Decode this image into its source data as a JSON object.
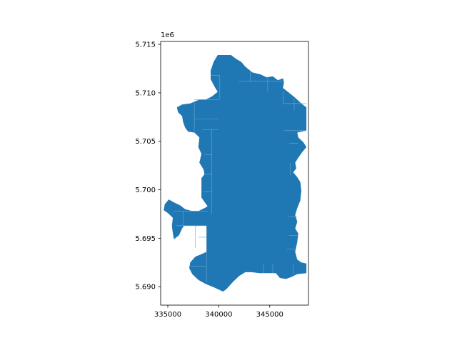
{
  "chart_data": {
    "type": "map",
    "geometry": "filled polygon mosaic (municipal boundary made of adjacent tiles)",
    "xlim": [
      334300,
      348800
    ],
    "ylim": [
      5688100,
      5715300
    ],
    "y_offset_label": "1e6",
    "x_ticks": [
      {
        "value": 335000,
        "label": "335000"
      },
      {
        "value": 340000,
        "label": "340000"
      },
      {
        "value": 345000,
        "label": "345000"
      }
    ],
    "y_ticks": [
      {
        "value": 5690000,
        "label": "5.690"
      },
      {
        "value": 5695000,
        "label": "5.695"
      },
      {
        "value": 5700000,
        "label": "5.700"
      },
      {
        "value": 5705000,
        "label": "5.705"
      },
      {
        "value": 5710000,
        "label": "5.710"
      },
      {
        "value": 5715000,
        "label": "5.715"
      }
    ],
    "grid": false,
    "legend": "none",
    "colors": {
      "fill": "#1f77b4",
      "tile_edge": "#6fa8d6",
      "axes": "#000000",
      "background": "#ffffff"
    },
    "outline": [
      [
        339900,
        5713900
      ],
      [
        341200,
        5713900
      ],
      [
        341700,
        5713500
      ],
      [
        342200,
        5713200
      ],
      [
        342600,
        5712700
      ],
      [
        343300,
        5712100
      ],
      [
        344100,
        5711900
      ],
      [
        344700,
        5711600
      ],
      [
        345300,
        5711700
      ],
      [
        345800,
        5711300
      ],
      [
        346300,
        5711500
      ],
      [
        346400,
        5711100
      ],
      [
        346300,
        5710500
      ],
      [
        346900,
        5710000
      ],
      [
        347500,
        5709500
      ],
      [
        348100,
        5708900
      ],
      [
        348600,
        5708500
      ],
      [
        348600,
        5706100
      ],
      [
        347700,
        5705900
      ],
      [
        347800,
        5705400
      ],
      [
        348300,
        5704900
      ],
      [
        348600,
        5704400
      ],
      [
        348200,
        5703900
      ],
      [
        347800,
        5703300
      ],
      [
        347500,
        5702800
      ],
      [
        347600,
        5702200
      ],
      [
        347300,
        5701800
      ],
      [
        347700,
        5701300
      ],
      [
        348000,
        5700800
      ],
      [
        348100,
        5699900
      ],
      [
        348000,
        5698900
      ],
      [
        347700,
        5698100
      ],
      [
        347500,
        5697400
      ],
      [
        347700,
        5696700
      ],
      [
        347500,
        5696000
      ],
      [
        347800,
        5695500
      ],
      [
        347700,
        5694600
      ],
      [
        347500,
        5693600
      ],
      [
        347700,
        5692800
      ],
      [
        348100,
        5692500
      ],
      [
        348600,
        5692400
      ],
      [
        348600,
        5691400
      ],
      [
        347700,
        5691300
      ],
      [
        347100,
        5691000
      ],
      [
        346600,
        5690800
      ],
      [
        346000,
        5690900
      ],
      [
        345600,
        5691400
      ],
      [
        345200,
        5691400
      ],
      [
        344600,
        5691400
      ],
      [
        344000,
        5691400
      ],
      [
        343200,
        5691500
      ],
      [
        342600,
        5691500
      ],
      [
        342000,
        5691100
      ],
      [
        341400,
        5690500
      ],
      [
        340700,
        5689700
      ],
      [
        340400,
        5689500
      ],
      [
        339600,
        5689900
      ],
      [
        338700,
        5690300
      ],
      [
        338000,
        5690700
      ],
      [
        337400,
        5691300
      ],
      [
        337100,
        5691900
      ],
      [
        337200,
        5692500
      ],
      [
        337700,
        5693100
      ],
      [
        338400,
        5693400
      ],
      [
        338800,
        5693600
      ],
      [
        338800,
        5696300
      ],
      [
        337300,
        5696300
      ],
      [
        336600,
        5696300
      ],
      [
        336400,
        5696000
      ],
      [
        336100,
        5695300
      ],
      [
        335600,
        5694900
      ],
      [
        335500,
        5695500
      ],
      [
        335400,
        5696300
      ],
      [
        335500,
        5697100
      ],
      [
        335000,
        5697600
      ],
      [
        334600,
        5697900
      ],
      [
        334700,
        5698500
      ],
      [
        335100,
        5699000
      ],
      [
        335600,
        5698700
      ],
      [
        336200,
        5698400
      ],
      [
        336700,
        5698000
      ],
      [
        337400,
        5697800
      ],
      [
        338000,
        5697800
      ],
      [
        338600,
        5698100
      ],
      [
        338900,
        5698300
      ],
      [
        338700,
        5698600
      ],
      [
        338300,
        5699200
      ],
      [
        338300,
        5700500
      ],
      [
        338300,
        5701200
      ],
      [
        338600,
        5701600
      ],
      [
        338500,
        5702100
      ],
      [
        338100,
        5702800
      ],
      [
        338300,
        5703700
      ],
      [
        338000,
        5704400
      ],
      [
        338100,
        5705400
      ],
      [
        337600,
        5705900
      ],
      [
        337000,
        5706000
      ],
      [
        336700,
        5706400
      ],
      [
        336500,
        5707000
      ],
      [
        336400,
        5707600
      ],
      [
        336000,
        5708000
      ],
      [
        335900,
        5708500
      ],
      [
        336400,
        5708800
      ],
      [
        337200,
        5708900
      ],
      [
        338100,
        5709300
      ],
      [
        338700,
        5709300
      ],
      [
        339300,
        5709600
      ],
      [
        339900,
        5710100
      ],
      [
        339600,
        5710600
      ],
      [
        339200,
        5711400
      ],
      [
        339200,
        5712300
      ],
      [
        339500,
        5713200
      ]
    ],
    "tile_lines": [
      [
        [
          340100,
          5711800
        ],
        [
          340100,
          5709300
        ]
      ],
      [
        [
          339200,
          5711800
        ],
        [
          340100,
          5711800
        ]
      ],
      [
        [
          342000,
          5711200
        ],
        [
          346300,
          5711200
        ]
      ],
      [
        [
          344800,
          5711700
        ],
        [
          344800,
          5710100
        ]
      ],
      [
        [
          346300,
          5710100
        ],
        [
          346300,
          5708800
        ]
      ],
      [
        [
          343100,
          5712300
        ],
        [
          343100,
          5711200
        ]
      ],
      [
        [
          337600,
          5709300
        ],
        [
          340000,
          5709300
        ]
      ],
      [
        [
          346400,
          5708900
        ],
        [
          348600,
          5708900
        ]
      ],
      [
        [
          347400,
          5709500
        ],
        [
          347400,
          5708200
        ]
      ],
      [
        [
          337600,
          5707300
        ],
        [
          340000,
          5707300
        ]
      ],
      [
        [
          337600,
          5709000
        ],
        [
          337600,
          5706000
        ]
      ],
      [
        [
          339300,
          5706200
        ],
        [
          339300,
          5697500
        ]
      ],
      [
        [
          338400,
          5706200
        ],
        [
          340000,
          5706200
        ]
      ],
      [
        [
          346400,
          5706100
        ],
        [
          348600,
          5706100
        ]
      ],
      [
        [
          346900,
          5704800
        ],
        [
          347800,
          5704800
        ]
      ],
      [
        [
          338600,
          5703600
        ],
        [
          339300,
          5703600
        ]
      ],
      [
        [
          347000,
          5702800
        ],
        [
          347000,
          5701500
        ]
      ],
      [
        [
          338500,
          5701600
        ],
        [
          339300,
          5701600
        ]
      ],
      [
        [
          338500,
          5699800
        ],
        [
          339300,
          5699800
        ]
      ],
      [
        [
          335600,
          5697800
        ],
        [
          338900,
          5697800
        ]
      ],
      [
        [
          336500,
          5697800
        ],
        [
          336500,
          5696300
        ]
      ],
      [
        [
          335800,
          5696300
        ],
        [
          338800,
          5696300
        ]
      ],
      [
        [
          337700,
          5696300
        ],
        [
          337700,
          5694000
        ]
      ],
      [
        [
          338000,
          5695100
        ],
        [
          338800,
          5695100
        ]
      ],
      [
        [
          346800,
          5697200
        ],
        [
          347700,
          5697200
        ]
      ],
      [
        [
          346900,
          5695300
        ],
        [
          347700,
          5695300
        ]
      ],
      [
        [
          346700,
          5693900
        ],
        [
          347500,
          5693900
        ]
      ],
      [
        [
          337300,
          5692100
        ],
        [
          338800,
          5692100
        ]
      ],
      [
        [
          338800,
          5693600
        ],
        [
          338800,
          5690400
        ]
      ],
      [
        [
          347300,
          5692400
        ],
        [
          347300,
          5691200
        ]
      ],
      [
        [
          345300,
          5692400
        ],
        [
          345300,
          5691400
        ]
      ],
      [
        [
          344400,
          5692400
        ],
        [
          344400,
          5691400
        ]
      ]
    ]
  }
}
